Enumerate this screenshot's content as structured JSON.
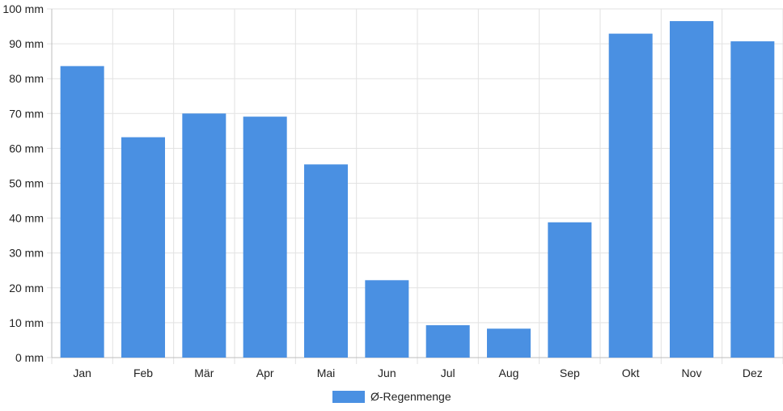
{
  "chart_data": {
    "type": "bar",
    "categories": [
      "Jan",
      "Feb",
      "Mär",
      "Apr",
      "Mai",
      "Jun",
      "Jul",
      "Aug",
      "Sep",
      "Okt",
      "Nov",
      "Dez"
    ],
    "series": [
      {
        "name": "Ø-Regenmenge",
        "values": [
          83.6,
          63.2,
          70.0,
          69.1,
          55.4,
          22.2,
          9.3,
          8.3,
          38.8,
          92.9,
          96.5,
          90.7
        ],
        "color": "#4a90e2"
      }
    ],
    "y_ticks": [
      "0 mm",
      "10 mm",
      "20 mm",
      "30 mm",
      "40 mm",
      "50 mm",
      "60 mm",
      "70 mm",
      "80 mm",
      "90 mm",
      "100 mm"
    ],
    "ylim": [
      0,
      100
    ],
    "grid": true,
    "legend_position": "bottom-center",
    "title": "",
    "xlabel": "",
    "ylabel": ""
  }
}
